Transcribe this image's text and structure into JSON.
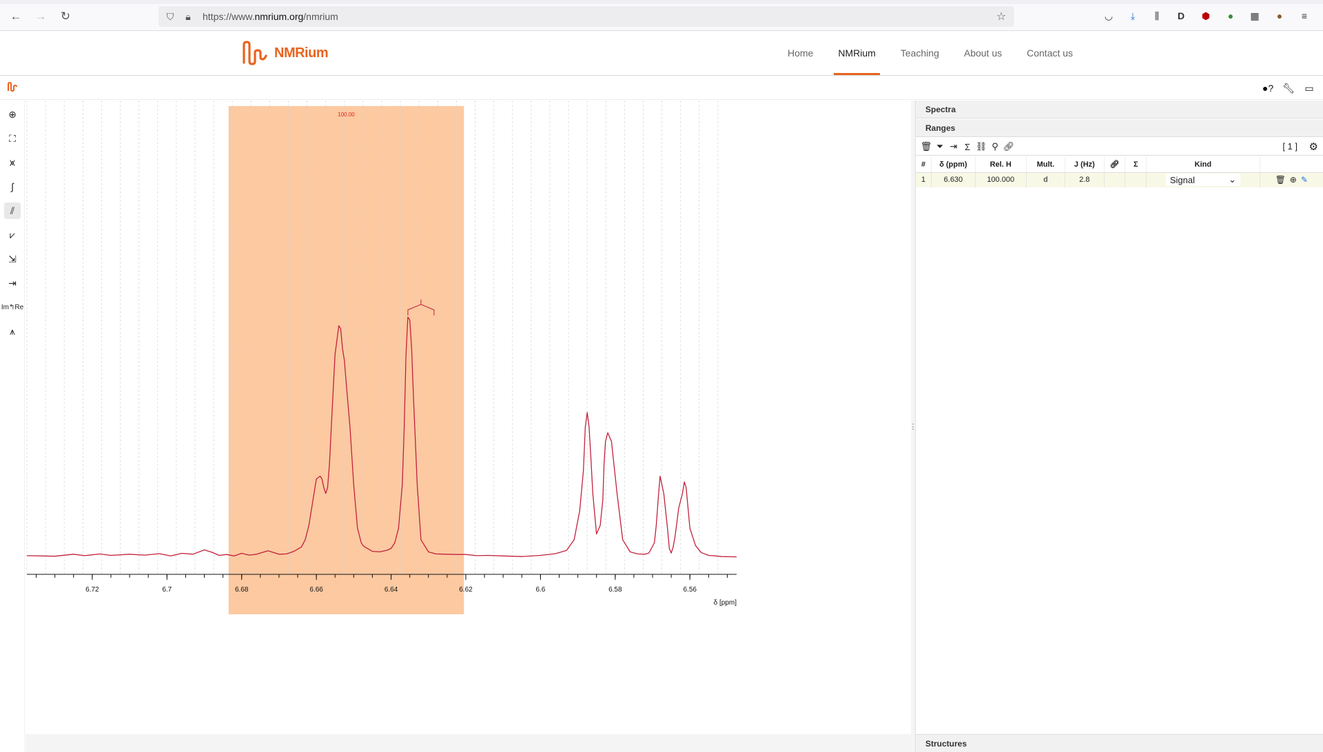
{
  "browser": {
    "url_prefix": "https://www.",
    "url_domain": "nmrium.org",
    "url_path": "/nmrium"
  },
  "site": {
    "logo_text": "NMRium",
    "nav": [
      {
        "label": "Home"
      },
      {
        "label": "NMRium"
      },
      {
        "label": "Teaching"
      },
      {
        "label": "About us"
      },
      {
        "label": "Contact us"
      }
    ],
    "active_nav": "NMRium"
  },
  "panels": {
    "spectra_title": "Spectra",
    "ranges_title": "Ranges",
    "structures_title": "Structures",
    "ranges_count": "[ 1 ]"
  },
  "ranges_table": {
    "headers": [
      "#",
      "δ (ppm)",
      "Rel. H",
      "Mult.",
      "J (Hz)",
      "",
      "Σ",
      "Kind"
    ],
    "rows": [
      {
        "index": "1",
        "delta": "6.630",
        "rel_h": "100.000",
        "mult": "d",
        "j": "2.8",
        "kind": "Signal"
      }
    ]
  },
  "colors": {
    "accent": "#e8641e",
    "spectrum": "#c2203a",
    "range_fill": "#fcc9a1",
    "integral_label": "#e02020"
  },
  "chart_data": {
    "type": "line",
    "xlabel": "δ [ppm]",
    "x_reversed": true,
    "xlim": [
      6.7375,
      6.5475
    ],
    "x_ticks": [
      "6.72",
      "6.7",
      "6.68",
      "6.66",
      "6.64",
      "6.62",
      "6.6",
      "6.58",
      "6.56"
    ],
    "range": {
      "from": 6.6835,
      "to": 6.6205,
      "integral_label": "100.00"
    },
    "multiplet_marker": {
      "from": 6.6355,
      "to": 6.6285
    },
    "series": [
      {
        "x": [
          6.7375,
          6.73,
          6.725,
          6.722,
          6.718,
          6.715,
          6.71,
          6.706,
          6.702,
          6.699,
          6.696,
          6.693,
          6.69,
          6.688,
          6.686,
          6.684,
          6.682,
          6.68,
          6.678,
          6.676,
          6.673,
          6.67,
          6.668,
          6.666,
          6.664,
          6.663,
          6.662,
          6.661,
          6.66,
          6.659,
          6.6585,
          6.658,
          6.6575,
          6.657,
          6.6565,
          6.656,
          6.655,
          6.654,
          6.6535,
          6.653,
          6.6525,
          6.652,
          6.651,
          6.65,
          6.649,
          6.648,
          6.6475,
          6.647,
          6.645,
          6.643,
          6.641,
          6.64,
          6.639,
          6.638,
          6.637,
          6.6365,
          6.636,
          6.6355,
          6.635,
          6.6345,
          6.634,
          6.633,
          6.632,
          6.63,
          6.628,
          6.625,
          6.622,
          6.62,
          6.617,
          6.614,
          6.61,
          6.605,
          6.6,
          6.596,
          6.593,
          6.591,
          6.5895,
          6.5885,
          6.588,
          6.5875,
          6.587,
          6.5865,
          6.586,
          6.585,
          6.584,
          6.5833,
          6.583,
          6.5826,
          6.582,
          6.581,
          6.5795,
          6.578,
          6.576,
          6.574,
          6.572,
          6.571,
          6.5705,
          6.5695,
          6.569,
          6.5685,
          6.568,
          6.567,
          6.566,
          6.5655,
          6.565,
          6.5645,
          6.564,
          6.563,
          6.562,
          6.5615,
          6.561,
          6.5605,
          6.56,
          6.5585,
          6.557,
          6.555,
          6.553,
          6.5515,
          6.5475
        ],
        "y": [
          0.005,
          0.003,
          0.01,
          0.005,
          0.011,
          0.006,
          0.01,
          0.007,
          0.012,
          0.004,
          0.013,
          0.01,
          0.025,
          0.017,
          0.006,
          0.009,
          0.004,
          0.013,
          0.007,
          0.01,
          0.022,
          0.01,
          0.011,
          0.02,
          0.035,
          0.06,
          0.11,
          0.19,
          0.27,
          0.28,
          0.27,
          0.24,
          0.22,
          0.24,
          0.32,
          0.45,
          0.7,
          0.8,
          0.79,
          0.72,
          0.68,
          0.6,
          0.45,
          0.25,
          0.1,
          0.05,
          0.04,
          0.035,
          0.02,
          0.018,
          0.024,
          0.03,
          0.05,
          0.1,
          0.25,
          0.44,
          0.7,
          0.83,
          0.82,
          0.72,
          0.55,
          0.25,
          0.06,
          0.018,
          0.011,
          0.01,
          0.009,
          0.009,
          0.005,
          0.006,
          0.004,
          0.002,
          0.006,
          0.012,
          0.023,
          0.06,
          0.16,
          0.3,
          0.45,
          0.5,
          0.45,
          0.34,
          0.22,
          0.08,
          0.11,
          0.2,
          0.32,
          0.4,
          0.43,
          0.4,
          0.22,
          0.06,
          0.018,
          0.011,
          0.01,
          0.014,
          0.025,
          0.05,
          0.11,
          0.2,
          0.28,
          0.22,
          0.1,
          0.03,
          0.014,
          0.034,
          0.07,
          0.17,
          0.22,
          0.26,
          0.24,
          0.17,
          0.1,
          0.04,
          0.016,
          0.006,
          0.004,
          0.002,
          0.001
        ]
      }
    ]
  }
}
